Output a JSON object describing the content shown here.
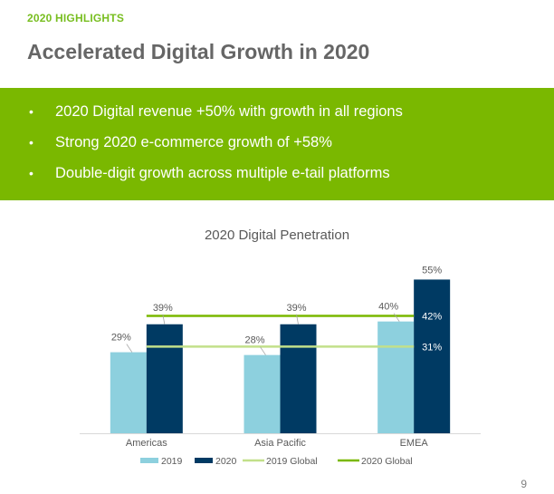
{
  "header": {
    "section_label": "2020 HIGHLIGHTS",
    "title": "Accelerated Digital Growth in 2020"
  },
  "highlights": [
    "2020 Digital revenue +50% with growth in all regions",
    "Strong 2020 e-commerce growth of +58%",
    "Double-digit growth across multiple e-tail platforms"
  ],
  "bullet_symbol": "•",
  "page_number": "9",
  "colors": {
    "accent_green": "#7ab800",
    "series_2019": "#8dd0de",
    "series_2020": "#003a63",
    "global_2019": "#c2e08a",
    "global_2020": "#7ab800"
  },
  "chart_data": {
    "type": "bar",
    "title": "2020 Digital Penetration",
    "categories": [
      "Americas",
      "Asia Pacific",
      "EMEA"
    ],
    "series": [
      {
        "name": "2019",
        "values": [
          29,
          28,
          40
        ],
        "labels": [
          "29%",
          "28%",
          "40%"
        ]
      },
      {
        "name": "2020",
        "values": [
          39,
          39,
          55
        ],
        "labels": [
          "39%",
          "39%",
          "55%"
        ]
      }
    ],
    "reference_lines": [
      {
        "name": "2019 Global",
        "value": 31,
        "label": "31%"
      },
      {
        "name": "2020 Global",
        "value": 42,
        "label": "42%"
      }
    ],
    "ylim": [
      0,
      60
    ],
    "grid": false,
    "legend_position": "bottom",
    "xlabel": "",
    "ylabel": ""
  }
}
